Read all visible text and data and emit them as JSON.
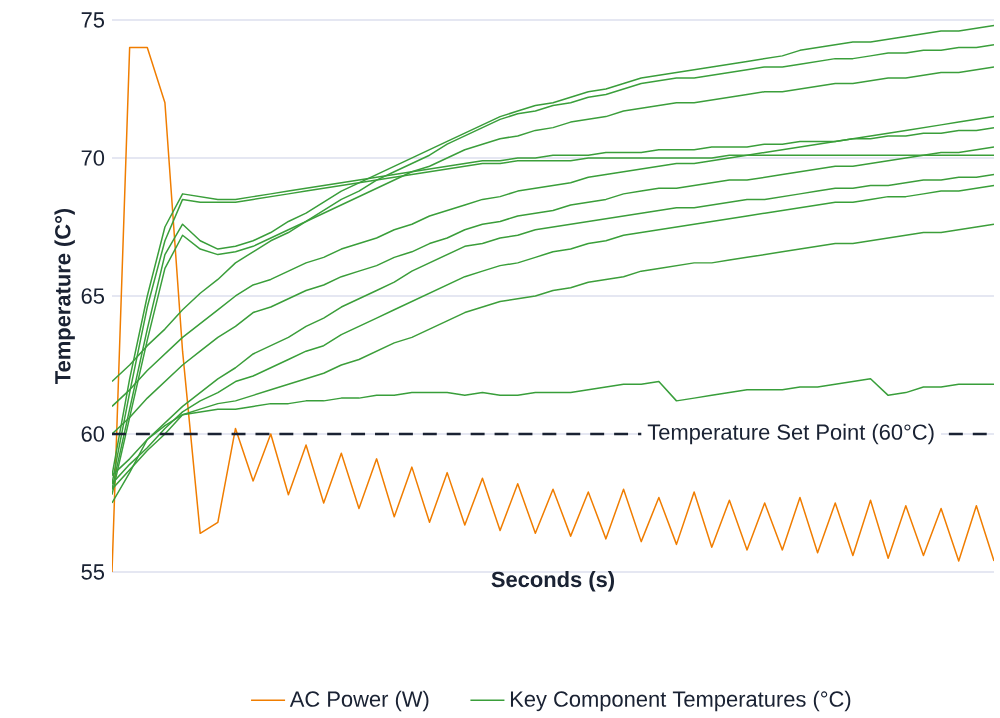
{
  "chart_data": {
    "type": "line",
    "xlabel": "Seconds (s)",
    "ylabel": "Temperature (C°)",
    "ylim": [
      55,
      75
    ],
    "yticks": [
      55,
      60,
      65,
      70,
      75
    ],
    "tick_labels": "y",
    "grid": "y",
    "legend": "bottom",
    "line_style": "solid",
    "marker": "none",
    "categories": [
      null,
      null,
      null,
      null,
      null,
      null,
      null,
      null,
      null,
      null,
      null,
      null,
      null,
      null,
      null,
      null,
      null,
      null,
      null,
      null,
      null,
      null,
      null,
      null,
      null,
      null,
      null,
      null,
      null,
      null,
      null,
      null,
      null,
      null,
      null,
      null,
      null,
      null,
      null,
      null,
      null,
      null,
      null,
      null,
      null,
      null,
      null,
      null,
      null,
      null,
      null
    ],
    "ref_lines": [
      {
        "axis": "y",
        "value": 60,
        "label": "Temperature Set Point (60°C)",
        "color": "#1a2233",
        "line_style": "dashed"
      }
    ],
    "series": [
      {
        "name": "AC Power (W)",
        "color": "#f07d00",
        "values": [
          55,
          74,
          74,
          72,
          63,
          56.4,
          56.8,
          60.2,
          58.3,
          60,
          57.8,
          59.6,
          57.5,
          59.3,
          57.3,
          59.1,
          57,
          58.8,
          56.8,
          58.6,
          56.7,
          58.4,
          56.5,
          58.2,
          56.4,
          58,
          56.3,
          57.9,
          56.2,
          58,
          56.1,
          57.7,
          56,
          57.9,
          55.9,
          57.6,
          55.8,
          57.5,
          55.8,
          57.7,
          55.7,
          57.5,
          55.6,
          57.6,
          55.5,
          57.4,
          55.6,
          57.3,
          55.4,
          57.4,
          55.4
        ]
      },
      {
        "name": "Key Component Temperatures (°C)",
        "color": "#3a9e3a",
        "values": [
          58.5,
          62,
          65,
          67.5,
          68.7,
          68.6,
          68.5,
          68.5,
          68.6,
          68.7,
          68.8,
          68.9,
          69.0,
          69.1,
          69.2,
          69.3,
          69.4,
          69.5,
          69.6,
          69.7,
          69.8,
          69.9,
          69.9,
          70,
          70,
          70.1,
          70.1,
          70.1,
          70.2,
          70.2,
          70.2,
          70.3,
          70.3,
          70.3,
          70.4,
          70.4,
          70.4,
          70.5,
          70.5,
          70.6,
          70.6,
          70.6,
          70.7,
          70.7,
          70.8,
          70.8,
          70.9,
          70.9,
          71,
          71,
          71.1
        ]
      },
      {
        "color": "#3b9f3a",
        "values": [
          58.2,
          61.5,
          64.6,
          67,
          68.5,
          68.4,
          68.4,
          68.4,
          68.5,
          68.6,
          68.7,
          68.8,
          68.9,
          69,
          69.1,
          69.2,
          69.3,
          69.4,
          69.5,
          69.6,
          69.7,
          69.8,
          69.8,
          69.9,
          69.9,
          69.9,
          69.9,
          70,
          70,
          70,
          70,
          70,
          70,
          70,
          70,
          70.1,
          70.1,
          70.1,
          70.1,
          70.1,
          70.1,
          70.1,
          70.1,
          70.1,
          70.1,
          70.1,
          70.1,
          70.1,
          70.1,
          70.1,
          70.1
        ]
      },
      {
        "color": "#399d3a",
        "values": [
          58,
          60.9,
          63.8,
          66.5,
          67.6,
          67,
          66.7,
          66.8,
          67,
          67.3,
          67.7,
          68,
          68.4,
          68.8,
          69.1,
          69.4,
          69.7,
          70,
          70.3,
          70.6,
          70.9,
          71.2,
          71.5,
          71.7,
          71.9,
          72,
          72.2,
          72.4,
          72.5,
          72.7,
          72.9,
          73,
          73.1,
          73.2,
          73.3,
          73.4,
          73.5,
          73.6,
          73.7,
          73.9,
          74,
          74.1,
          74.2,
          74.2,
          74.3,
          74.4,
          74.5,
          74.6,
          74.6,
          74.7,
          74.8
        ]
      },
      {
        "color": "#3a9f3b",
        "values": [
          57.8,
          60.6,
          63.4,
          66,
          67.2,
          66.7,
          66.5,
          66.6,
          66.8,
          67.1,
          67.4,
          67.7,
          68.1,
          68.5,
          68.8,
          69.2,
          69.5,
          69.8,
          70.1,
          70.5,
          70.8,
          71.1,
          71.4,
          71.6,
          71.7,
          71.9,
          72,
          72.2,
          72.3,
          72.5,
          72.7,
          72.8,
          72.9,
          72.9,
          73,
          73.1,
          73.2,
          73.3,
          73.3,
          73.4,
          73.5,
          73.6,
          73.6,
          73.7,
          73.8,
          73.8,
          73.9,
          73.9,
          74,
          74,
          74.1
        ]
      },
      {
        "color": "#3b9e3b",
        "values": [
          61.9,
          62.5,
          63.2,
          63.8,
          64.5,
          65.1,
          65.6,
          66.2,
          66.6,
          67,
          67.3,
          67.7,
          68,
          68.3,
          68.6,
          68.9,
          69.2,
          69.5,
          69.7,
          70,
          70.3,
          70.5,
          70.7,
          70.8,
          71,
          71.1,
          71.3,
          71.4,
          71.5,
          71.7,
          71.8,
          71.9,
          72,
          72,
          72.1,
          72.2,
          72.3,
          72.4,
          72.4,
          72.5,
          72.6,
          72.7,
          72.7,
          72.8,
          72.9,
          72.9,
          73,
          73.1,
          73.1,
          73.2,
          73.3
        ]
      },
      {
        "color": "#399e39",
        "values": [
          61,
          61.6,
          62.3,
          62.9,
          63.5,
          64,
          64.5,
          65,
          65.4,
          65.6,
          65.9,
          66.2,
          66.4,
          66.7,
          66.9,
          67.1,
          67.4,
          67.6,
          67.9,
          68.1,
          68.3,
          68.5,
          68.6,
          68.8,
          68.9,
          69,
          69.1,
          69.3,
          69.4,
          69.5,
          69.6,
          69.7,
          69.8,
          69.8,
          69.9,
          70,
          70.1,
          70.2,
          70.3,
          70.4,
          70.5,
          70.6,
          70.7,
          70.8,
          70.9,
          71,
          71.1,
          71.2,
          71.3,
          71.4,
          71.5
        ]
      },
      {
        "color": "#3a9d39",
        "values": [
          60,
          60.6,
          61.3,
          61.9,
          62.5,
          63,
          63.5,
          63.9,
          64.4,
          64.6,
          64.9,
          65.2,
          65.4,
          65.7,
          65.9,
          66.1,
          66.4,
          66.6,
          66.9,
          67.1,
          67.4,
          67.6,
          67.7,
          67.9,
          68,
          68.1,
          68.3,
          68.4,
          68.5,
          68.7,
          68.8,
          68.9,
          68.9,
          69,
          69.1,
          69.2,
          69.2,
          69.3,
          69.4,
          69.5,
          69.6,
          69.7,
          69.7,
          69.8,
          69.9,
          70,
          70.1,
          70.2,
          70.2,
          70.3,
          70.4
        ]
      },
      {
        "color": "#3b9d3a",
        "values": [
          58.5,
          59.1,
          59.8,
          60.4,
          61,
          61.5,
          62,
          62.4,
          62.9,
          63.2,
          63.5,
          63.9,
          64.2,
          64.6,
          64.9,
          65.2,
          65.5,
          65.9,
          66.2,
          66.5,
          66.8,
          66.9,
          67.1,
          67.2,
          67.4,
          67.5,
          67.6,
          67.7,
          67.8,
          67.9,
          68,
          68.1,
          68.2,
          68.2,
          68.3,
          68.4,
          68.5,
          68.5,
          68.6,
          68.7,
          68.8,
          68.9,
          68.9,
          69,
          69,
          69.1,
          69.2,
          69.2,
          69.3,
          69.3,
          69.4
        ]
      },
      {
        "color": "#399f39",
        "values": [
          58.2,
          58.9,
          59.5,
          60.2,
          60.8,
          61.2,
          61.5,
          61.9,
          62.1,
          62.4,
          62.7,
          63,
          63.2,
          63.6,
          63.9,
          64.2,
          64.5,
          64.8,
          65.1,
          65.4,
          65.7,
          65.9,
          66.1,
          66.2,
          66.4,
          66.6,
          66.7,
          66.9,
          67,
          67.2,
          67.3,
          67.4,
          67.5,
          67.6,
          67.7,
          67.8,
          67.9,
          68,
          68.1,
          68.2,
          68.3,
          68.4,
          68.4,
          68.5,
          68.6,
          68.6,
          68.7,
          68.8,
          68.8,
          68.9,
          69
        ]
      },
      {
        "color": "#3c9e3a",
        "values": [
          58,
          58.7,
          59.4,
          60,
          60.7,
          60.9,
          61.1,
          61.2,
          61.4,
          61.6,
          61.8,
          62,
          62.2,
          62.5,
          62.7,
          63,
          63.3,
          63.5,
          63.8,
          64.1,
          64.4,
          64.6,
          64.8,
          64.9,
          65,
          65.2,
          65.3,
          65.5,
          65.6,
          65.7,
          65.9,
          66,
          66.1,
          66.2,
          66.2,
          66.3,
          66.4,
          66.5,
          66.6,
          66.7,
          66.8,
          66.9,
          66.9,
          67,
          67.1,
          67.2,
          67.3,
          67.3,
          67.4,
          67.5,
          67.6
        ]
      },
      {
        "color": "#389e3a",
        "values": [
          57.5,
          58.6,
          59.8,
          60.3,
          60.7,
          60.8,
          60.9,
          60.9,
          61,
          61.1,
          61.1,
          61.2,
          61.2,
          61.3,
          61.3,
          61.4,
          61.4,
          61.5,
          61.5,
          61.5,
          61.4,
          61.5,
          61.4,
          61.4,
          61.5,
          61.5,
          61.5,
          61.6,
          61.7,
          61.8,
          61.8,
          61.9,
          61.2,
          61.3,
          61.4,
          61.5,
          61.6,
          61.6,
          61.6,
          61.7,
          61.7,
          61.8,
          61.9,
          62,
          61.4,
          61.5,
          61.7,
          61.7,
          61.8,
          61.8,
          61.8
        ]
      }
    ]
  }
}
